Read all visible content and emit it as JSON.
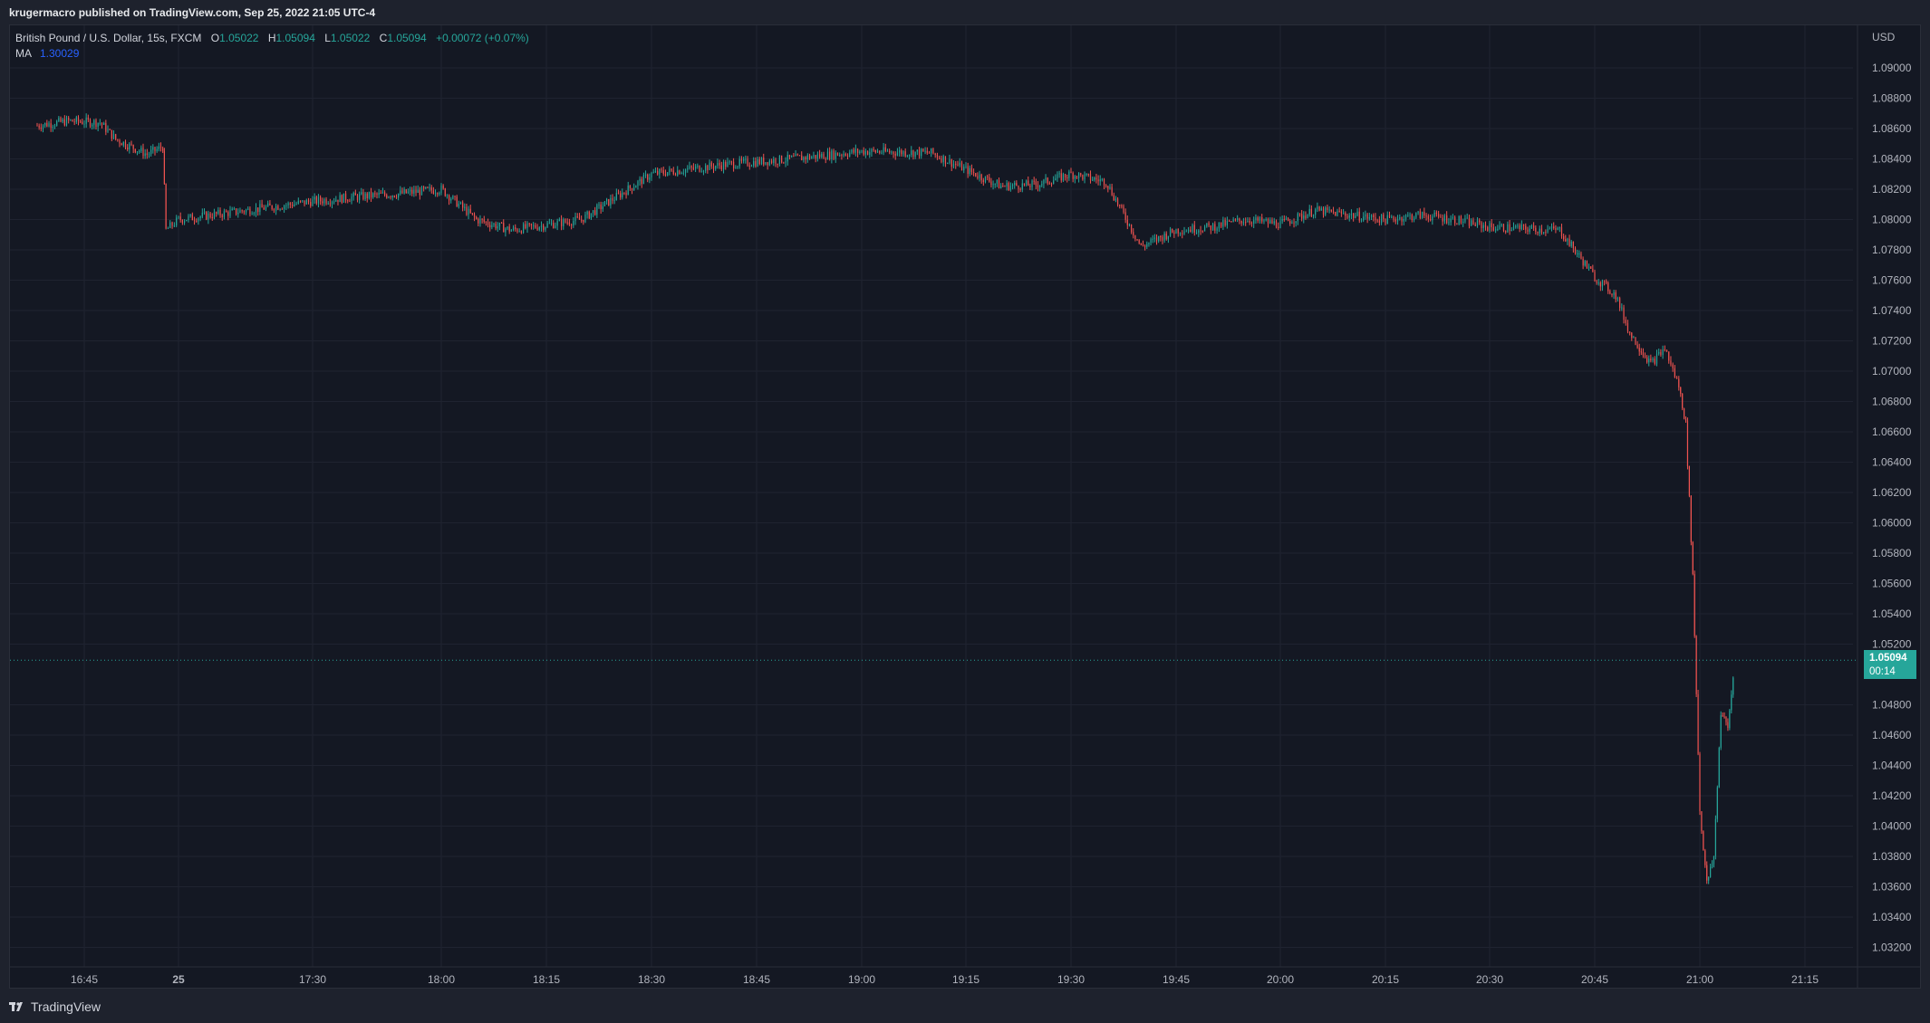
{
  "header": {
    "published_text": "krugermacro published on TradingView.com, Sep 25, 2022 21:05 UTC-4"
  },
  "legend": {
    "symbol": "British Pound / U.S. Dollar, 15s, FXCM",
    "open_label": "O",
    "open": "1.05022",
    "high_label": "H",
    "high": "1.05094",
    "low_label": "L",
    "low": "1.05022",
    "close_label": "C",
    "close": "1.05094",
    "change": "+0.00072 (+0.07%)",
    "ma_label": "MA",
    "ma_value": "1.30029"
  },
  "price_axis": {
    "currency": "USD",
    "ticks": [
      "1.09000",
      "1.08800",
      "1.08600",
      "1.08400",
      "1.08200",
      "1.08000",
      "1.07800",
      "1.07600",
      "1.07400",
      "1.07200",
      "1.07000",
      "1.06800",
      "1.06600",
      "1.06400",
      "1.06200",
      "1.06000",
      "1.05800",
      "1.05600",
      "1.05400",
      "1.05200",
      "1.04800",
      "1.04600",
      "1.04400",
      "1.04200",
      "1.04000",
      "1.03800",
      "1.03600",
      "1.03400",
      "1.03200"
    ]
  },
  "time_axis": {
    "ticks": [
      "16:45",
      "25",
      "17:30",
      "18:00",
      "18:15",
      "18:30",
      "18:45",
      "19:00",
      "19:15",
      "19:30",
      "19:45",
      "20:00",
      "20:15",
      "20:30",
      "20:45",
      "21:00",
      "21:15"
    ]
  },
  "last_price": {
    "price": "1.05094",
    "countdown": "00:14"
  },
  "footer": {
    "brand": "TradingView"
  },
  "colors": {
    "up": "#26a69a",
    "down": "#ef5350",
    "background": "#141823",
    "grid": "#1f2330",
    "ma": "#2962ff"
  },
  "chart_data": {
    "type": "candlestick",
    "title": "British Pound / U.S. Dollar, 15s, FXCM",
    "ylabel": "USD",
    "ylim": [
      1.031,
      1.0915
    ],
    "xlim": [
      "16:30",
      "21:30"
    ],
    "series": [
      {
        "name": "GBPUSD",
        "points": [
          {
            "t": "16:30",
            "close": 1.0862
          },
          {
            "t": "16:40",
            "close": 1.0865
          },
          {
            "t": "16:50",
            "close": 1.0864
          },
          {
            "t": "16:55",
            "close": 1.0853
          },
          {
            "t": "17:05",
            "close": 1.0843
          },
          {
            "t": "17:10",
            "close": 1.0848
          },
          {
            "t": "17:11",
            "close": 1.0793
          },
          {
            "t": "17:15",
            "close": 1.08
          },
          {
            "t": "17:25",
            "close": 1.0808
          },
          {
            "t": "17:30",
            "close": 1.0812
          },
          {
            "t": "17:40",
            "close": 1.0815
          },
          {
            "t": "17:50",
            "close": 1.0817
          },
          {
            "t": "18:00",
            "close": 1.082
          },
          {
            "t": "18:05",
            "close": 1.08
          },
          {
            "t": "18:10",
            "close": 1.0793
          },
          {
            "t": "18:20",
            "close": 1.08
          },
          {
            "t": "18:25",
            "close": 1.0815
          },
          {
            "t": "18:30",
            "close": 1.083
          },
          {
            "t": "18:40",
            "close": 1.0836
          },
          {
            "t": "18:50",
            "close": 1.084
          },
          {
            "t": "19:00",
            "close": 1.0845
          },
          {
            "t": "19:10",
            "close": 1.0844
          },
          {
            "t": "19:15",
            "close": 1.0833
          },
          {
            "t": "19:20",
            "close": 1.0822
          },
          {
            "t": "19:25",
            "close": 1.0823
          },
          {
            "t": "19:30",
            "close": 1.083
          },
          {
            "t": "19:35",
            "close": 1.0825
          },
          {
            "t": "19:40",
            "close": 1.0782
          },
          {
            "t": "19:45",
            "close": 1.0793
          },
          {
            "t": "19:50",
            "close": 1.0795
          },
          {
            "t": "19:55",
            "close": 1.08
          },
          {
            "t": "20:00",
            "close": 1.0797
          },
          {
            "t": "20:05",
            "close": 1.0806
          },
          {
            "t": "20:15",
            "close": 1.08
          },
          {
            "t": "20:20",
            "close": 1.0803
          },
          {
            "t": "20:25",
            "close": 1.08
          },
          {
            "t": "20:30",
            "close": 1.0795
          },
          {
            "t": "20:40",
            "close": 1.0793
          },
          {
            "t": "20:45",
            "close": 1.0762
          },
          {
            "t": "20:48",
            "close": 1.075
          },
          {
            "t": "20:50",
            "close": 1.0725
          },
          {
            "t": "20:53",
            "close": 1.0705
          },
          {
            "t": "20:55",
            "close": 1.0715
          },
          {
            "t": "20:57",
            "close": 1.069
          },
          {
            "t": "20:58",
            "close": 1.0665
          },
          {
            "t": "20:59",
            "close": 1.0565
          },
          {
            "t": "21:00",
            "close": 1.041
          },
          {
            "t": "21:01",
            "close": 1.0362
          },
          {
            "t": "21:02",
            "close": 1.038
          },
          {
            "t": "21:03",
            "close": 1.0475
          },
          {
            "t": "21:04",
            "close": 1.0465
          },
          {
            "t": "21:05",
            "close": 1.05094
          }
        ]
      },
      {
        "name": "MA",
        "last_value": 1.30029
      }
    ]
  }
}
